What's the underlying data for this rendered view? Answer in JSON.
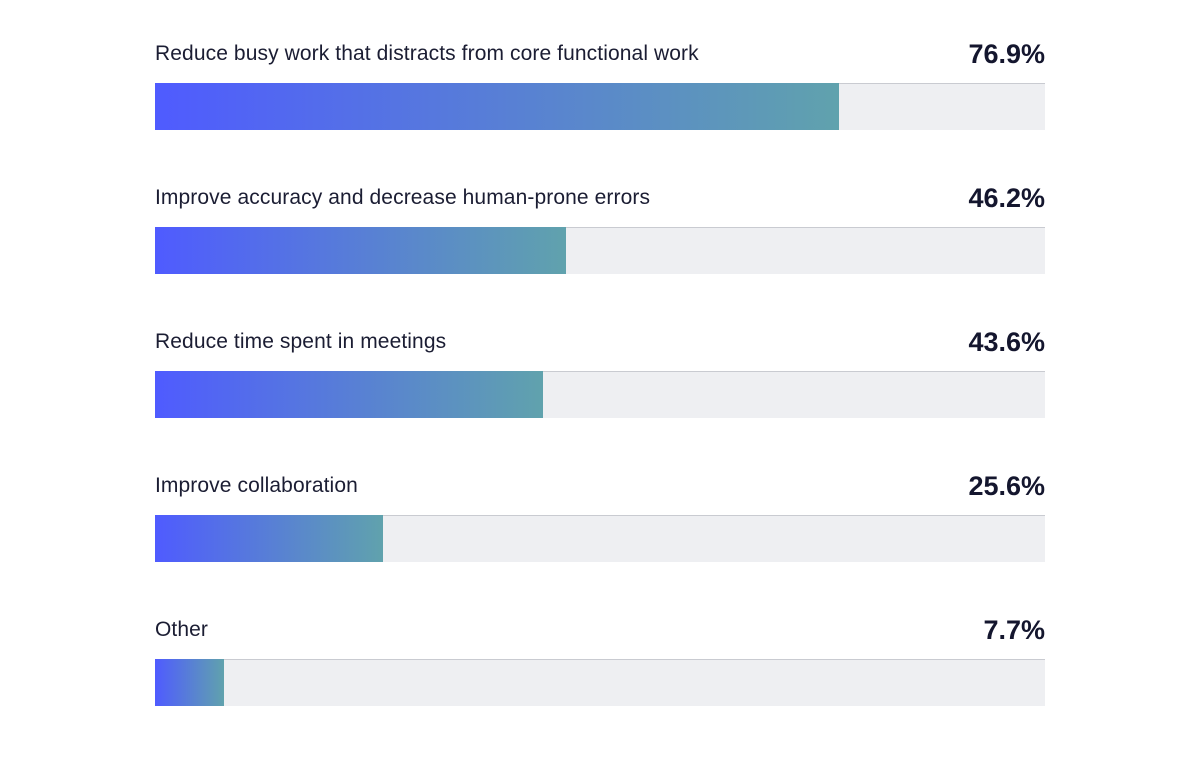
{
  "colors": {
    "bar_start": "#4f5bff",
    "bar_end": "#60a2ad",
    "track": "#eeeff2"
  },
  "chart_data": {
    "type": "bar",
    "orientation": "horizontal",
    "categories": [
      "Reduce busy work that distracts from core functional work",
      "Improve accuracy and decrease human-prone errors",
      "Reduce time spent in meetings",
      "Improve collaboration",
      "Other"
    ],
    "values": [
      76.9,
      46.2,
      43.6,
      25.6,
      7.7
    ],
    "value_labels": [
      "76.9%",
      "46.2%",
      "43.6%",
      "25.6%",
      "7.7%"
    ],
    "xlim": [
      0,
      100
    ],
    "grid": false,
    "legend": "none"
  }
}
